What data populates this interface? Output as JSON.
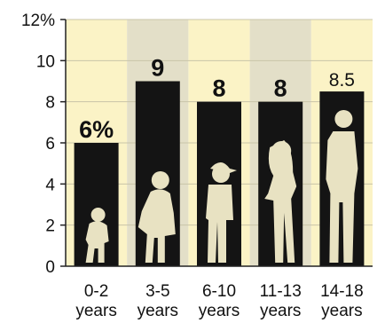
{
  "chart_data": {
    "type": "bar",
    "categories": [
      {
        "line1": "0-2",
        "line2": "years"
      },
      {
        "line1": "3-5",
        "line2": "years"
      },
      {
        "line1": "6-10",
        "line2": "years"
      },
      {
        "line1": "11-13",
        "line2": "years"
      },
      {
        "line1": "14-18",
        "line2": "years"
      }
    ],
    "values": [
      6,
      9,
      8,
      8,
      8.5
    ],
    "value_labels": [
      "6%",
      "9",
      "8",
      "8",
      "8.5"
    ],
    "y_ticks": [
      "0",
      "2",
      "4",
      "6",
      "8",
      "10",
      "12%"
    ],
    "ylim": [
      0,
      12
    ],
    "grid": true,
    "colors": {
      "bar": "#141414",
      "column_bg_light": "#fbf3c6",
      "column_bg_gray": "#e3dfc8",
      "silhouette": "#e8e2c2",
      "gridline": "#c9c4a8",
      "axis": "#222222"
    },
    "icons": [
      "toddler-silhouette",
      "child-silhouette",
      "boy-cap-silhouette",
      "girl-silhouette",
      "teen-silhouette"
    ]
  }
}
